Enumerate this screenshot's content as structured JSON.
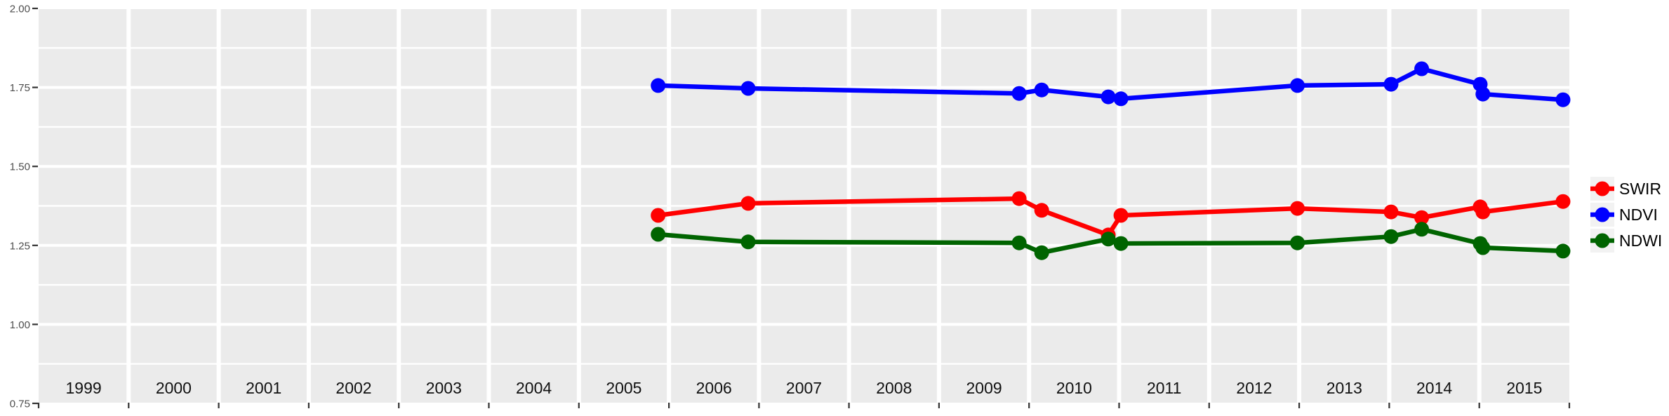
{
  "figure": {
    "background": "#FFFFFF",
    "panel_background": "#EBEBEB",
    "gridline_color": "#FFFFFF",
    "axis_text_color": "#4D4D4D",
    "year_text_color": "#111111",
    "tick_color": "#333333",
    "legend_key_background": "#F2F2F2"
  },
  "chart_data": {
    "type": "line",
    "title": "",
    "xlabel": "",
    "ylabel": "",
    "legend_position": "right",
    "grid": true,
    "x_range": [
      1999,
      2016
    ],
    "y_range": [
      0.75,
      2.0
    ],
    "x": [
      2005.88,
      2006.88,
      2009.89,
      2010.14,
      2010.88,
      2011.02,
      2012.98,
      2014.02,
      2014.36,
      2015.01,
      2015.04,
      2015.93
    ],
    "series": [
      {
        "name": "SWIR",
        "color": "#FF0000",
        "values": [
          1.345,
          1.383,
          1.398,
          1.361,
          1.283,
          1.345,
          1.367,
          1.356,
          1.338,
          1.372,
          1.356,
          1.389
        ]
      },
      {
        "name": "NDVI",
        "color": "#0000FF",
        "values": [
          1.756,
          1.747,
          1.731,
          1.742,
          1.72,
          1.714,
          1.756,
          1.76,
          1.809,
          1.76,
          1.729,
          1.711
        ]
      },
      {
        "name": "NDWI",
        "color": "#006400",
        "values": [
          1.285,
          1.261,
          1.258,
          1.227,
          1.27,
          1.256,
          1.258,
          1.278,
          1.301,
          1.256,
          1.243,
          1.232
        ]
      }
    ],
    "x_year_labels": [
      "1999",
      "2000",
      "2001",
      "2002",
      "2003",
      "2004",
      "2005",
      "2006",
      "2007",
      "2008",
      "2009",
      "2010",
      "2011",
      "2012",
      "2013",
      "2014",
      "2015"
    ],
    "y_ticks": [
      {
        "value": 2.0,
        "label": "2.00"
      },
      {
        "value": 1.75,
        "label": "1.75"
      },
      {
        "value": 1.5,
        "label": "1.50"
      },
      {
        "value": 1.25,
        "label": "1.25"
      },
      {
        "value": 1.0,
        "label": "1.00"
      },
      {
        "value": 0.75,
        "label": "0.75"
      }
    ]
  }
}
